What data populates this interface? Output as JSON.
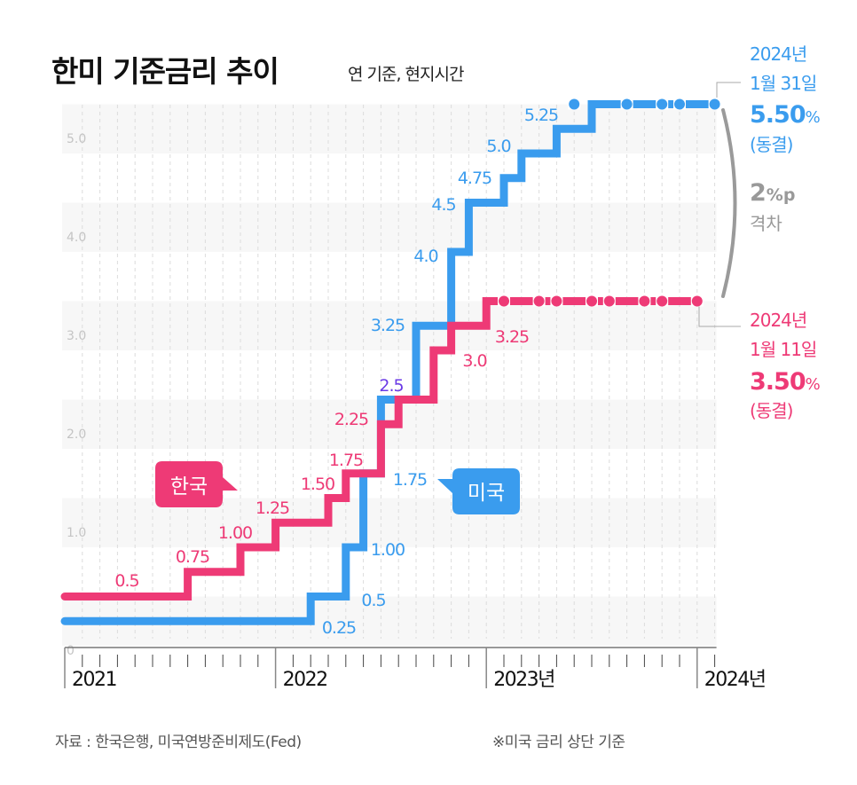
{
  "title": "한미 기준금리 추이",
  "subtitle": "연 기준, 현지시간",
  "source": "자료 : 한국은행, 미국연방준비제도(Fed)",
  "footnote": "※미국 금리 상단 기준",
  "colors": {
    "korea": "#ee3a76",
    "us": "#3a9cee",
    "overlap": "#6b3be6",
    "gap": "#999999"
  },
  "chart_data": {
    "type": "line",
    "step": true,
    "xlabel": "",
    "ylabel": "",
    "ylim": [
      0,
      5.5
    ],
    "yticks": [
      "0",
      "1.0",
      "2.0",
      "3.0",
      "4.0",
      "5.0"
    ],
    "xticks": [
      "2021",
      "2022",
      "2023년",
      "2024년"
    ],
    "xrange": [
      "2021-01",
      "2024-02"
    ],
    "grid": true,
    "series": [
      {
        "name": "한국",
        "color": "#ee3a76",
        "steps": [
          {
            "date": "2021-01",
            "value": 0.5,
            "label": "0.5"
          },
          {
            "date": "2021-08",
            "value": 0.75,
            "label": "0.75"
          },
          {
            "date": "2021-11",
            "value": 1.0,
            "label": "1.00"
          },
          {
            "date": "2022-01",
            "value": 1.25,
            "label": "1.25"
          },
          {
            "date": "2022-04",
            "value": 1.5,
            "label": "1.50"
          },
          {
            "date": "2022-05",
            "value": 1.75,
            "label": "1.75"
          },
          {
            "date": "2022-07",
            "value": 2.25,
            "label": "2.25"
          },
          {
            "date": "2022-08",
            "value": 2.5,
            "label": "2.5"
          },
          {
            "date": "2022-10",
            "value": 3.0,
            "label": "3.0"
          },
          {
            "date": "2022-11",
            "value": 3.25,
            "label": "3.25"
          },
          {
            "date": "2023-01",
            "value": 3.5,
            "label": ""
          }
        ],
        "end": "2024-01",
        "hold_meetings": [
          "2023-02",
          "2023-04",
          "2023-05",
          "2023-07",
          "2023-08",
          "2023-10",
          "2023-11",
          "2024-01"
        ]
      },
      {
        "name": "미국",
        "color": "#3a9cee",
        "steps": [
          {
            "date": "2021-01",
            "value": 0.25,
            "label": "0.25"
          },
          {
            "date": "2022-03",
            "value": 0.5,
            "label": "0.5"
          },
          {
            "date": "2022-05",
            "value": 1.0,
            "label": "1.00"
          },
          {
            "date": "2022-06",
            "value": 1.75,
            "label": "1.75"
          },
          {
            "date": "2022-07",
            "value": 2.5,
            "label": "2.5"
          },
          {
            "date": "2022-09",
            "value": 3.25,
            "label": "3.25"
          },
          {
            "date": "2022-11",
            "value": 4.0,
            "label": "4.0"
          },
          {
            "date": "2022-12",
            "value": 4.5,
            "label": "4.5"
          },
          {
            "date": "2023-02",
            "value": 4.75,
            "label": "4.75"
          },
          {
            "date": "2023-03",
            "value": 5.0,
            "label": "5.0"
          },
          {
            "date": "2023-05",
            "value": 5.25,
            "label": "5.25"
          },
          {
            "date": "2023-07",
            "value": 5.5,
            "label": ""
          }
        ],
        "end": "2024-02",
        "hold_meetings": [
          "2023-06",
          "2023-09",
          "2023-11",
          "2023-12",
          "2024-02"
        ]
      }
    ],
    "annotations": {
      "us": {
        "date": "2024년",
        "day": "1월 31일",
        "rate": "5.50",
        "unit": "%",
        "status": "(동결)"
      },
      "korea": {
        "date": "2024년",
        "day": "1월 11일",
        "rate": "3.50",
        "unit": "%",
        "status": "(동결)"
      },
      "gap": {
        "value": "2",
        "unit": "%p",
        "label": "격차"
      }
    },
    "legend": {
      "korea": "한국",
      "us": "미국"
    }
  }
}
